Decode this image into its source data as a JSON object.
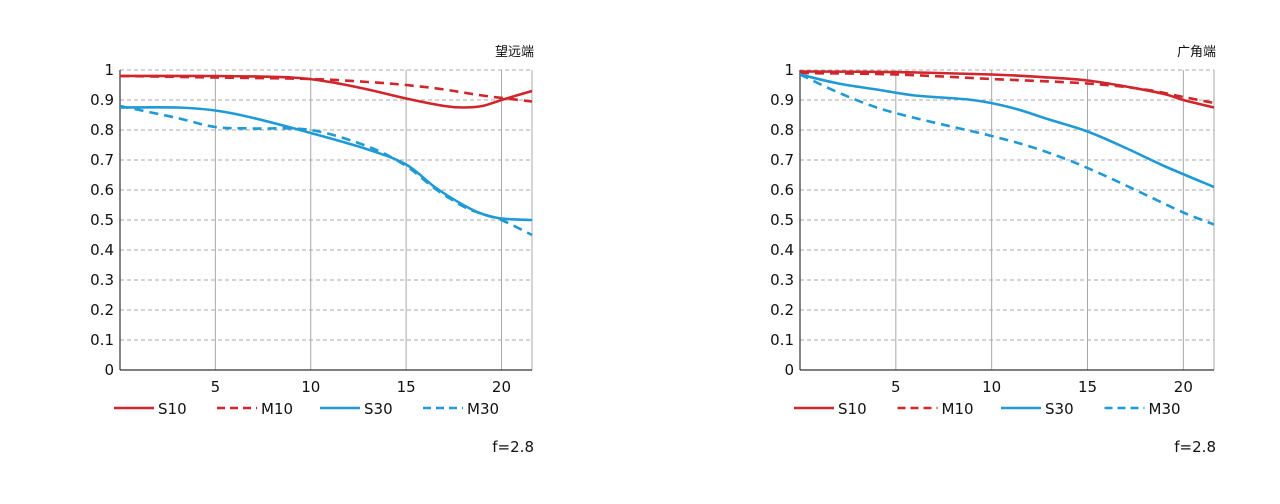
{
  "chart_data": [
    {
      "type": "line",
      "title": "望远端",
      "aperture_label": "f=2.8",
      "xlim": [
        0,
        21.6
      ],
      "ylim": [
        0,
        1
      ],
      "x_ticks": [
        5,
        10,
        15,
        20
      ],
      "y_ticks": [
        {
          "value": 0,
          "label": "0"
        },
        {
          "value": 0.1,
          "label": "0.1"
        },
        {
          "value": 0.2,
          "label": "0.2"
        },
        {
          "value": 0.3,
          "label": "0.3"
        },
        {
          "value": 0.4,
          "label": "0.4"
        },
        {
          "value": 0.5,
          "label": "0.5"
        },
        {
          "value": 0.6,
          "label": "0.6"
        },
        {
          "value": 0.7,
          "label": "0.7"
        },
        {
          "value": 0.8,
          "label": "0.8"
        },
        {
          "value": 0.9,
          "label": "0.9"
        },
        {
          "value": 1,
          "label": "1"
        }
      ],
      "grid": true,
      "legend_position": "bottom",
      "series": [
        {
          "name": "S10",
          "color": "#d0252b",
          "dash": "solid",
          "x": [
            0,
            5,
            9,
            11,
            13,
            15,
            17,
            18,
            19,
            20,
            21.6
          ],
          "y": [
            0.98,
            0.98,
            0.975,
            0.96,
            0.935,
            0.905,
            0.88,
            0.875,
            0.88,
            0.9,
            0.93
          ]
        },
        {
          "name": "M10",
          "color": "#d0252b",
          "dash": "dashed",
          "x": [
            0,
            5,
            10,
            13,
            15,
            17,
            19,
            21.6
          ],
          "y": [
            0.98,
            0.975,
            0.97,
            0.96,
            0.95,
            0.935,
            0.915,
            0.895
          ]
        },
        {
          "name": "S30",
          "color": "#1f9ad6",
          "dash": "solid",
          "x": [
            0,
            3,
            5,
            7,
            10,
            13,
            15,
            16.5,
            18,
            19,
            20,
            21.6
          ],
          "y": [
            0.875,
            0.875,
            0.865,
            0.84,
            0.79,
            0.735,
            0.685,
            0.61,
            0.55,
            0.52,
            0.505,
            0.5
          ]
        },
        {
          "name": "M30",
          "color": "#1f9ad6",
          "dash": "dashed",
          "x": [
            0,
            3,
            5,
            7,
            10,
            13,
            15,
            16.5,
            18,
            19,
            20,
            21.6
          ],
          "y": [
            0.88,
            0.84,
            0.81,
            0.805,
            0.8,
            0.745,
            0.68,
            0.605,
            0.545,
            0.52,
            0.5,
            0.45
          ]
        }
      ]
    },
    {
      "type": "line",
      "title": "广角端",
      "aperture_label": "f=2.8",
      "xlim": [
        0,
        21.6
      ],
      "ylim": [
        0,
        1
      ],
      "x_ticks": [
        5,
        10,
        15,
        20
      ],
      "y_ticks": [
        {
          "value": 0,
          "label": "0"
        },
        {
          "value": 0.1,
          "label": "0.1"
        },
        {
          "value": 0.2,
          "label": "0.2"
        },
        {
          "value": 0.3,
          "label": "0.3"
        },
        {
          "value": 0.4,
          "label": "0.4"
        },
        {
          "value": 0.5,
          "label": "0.5"
        },
        {
          "value": 0.6,
          "label": "0.6"
        },
        {
          "value": 0.7,
          "label": "0.7"
        },
        {
          "value": 0.8,
          "label": "0.8"
        },
        {
          "value": 0.9,
          "label": "0.9"
        },
        {
          "value": 1,
          "label": "1"
        }
      ],
      "grid": true,
      "legend_position": "bottom",
      "series": [
        {
          "name": "S10",
          "color": "#d0252b",
          "dash": "solid",
          "x": [
            0,
            5,
            10,
            13,
            15,
            17,
            19,
            20,
            21.6
          ],
          "y": [
            0.995,
            0.993,
            0.985,
            0.975,
            0.965,
            0.945,
            0.92,
            0.9,
            0.875
          ]
        },
        {
          "name": "M10",
          "color": "#d0252b",
          "dash": "dashed",
          "x": [
            0,
            5,
            10,
            15,
            18,
            20,
            21.6
          ],
          "y": [
            0.99,
            0.985,
            0.97,
            0.955,
            0.935,
            0.91,
            0.89
          ]
        },
        {
          "name": "S30",
          "color": "#1f9ad6",
          "dash": "solid",
          "x": [
            0,
            2,
            4,
            6,
            9,
            11,
            13,
            15,
            17,
            19,
            21.6
          ],
          "y": [
            0.985,
            0.955,
            0.935,
            0.915,
            0.9,
            0.875,
            0.835,
            0.795,
            0.74,
            0.68,
            0.61
          ]
        },
        {
          "name": "M30",
          "color": "#1f9ad6",
          "dash": "dashed",
          "x": [
            0,
            2,
            4,
            6,
            8,
            10,
            12,
            14,
            16,
            18,
            20,
            21.6
          ],
          "y": [
            0.985,
            0.925,
            0.875,
            0.84,
            0.81,
            0.78,
            0.745,
            0.7,
            0.645,
            0.585,
            0.525,
            0.485
          ]
        }
      ]
    }
  ]
}
